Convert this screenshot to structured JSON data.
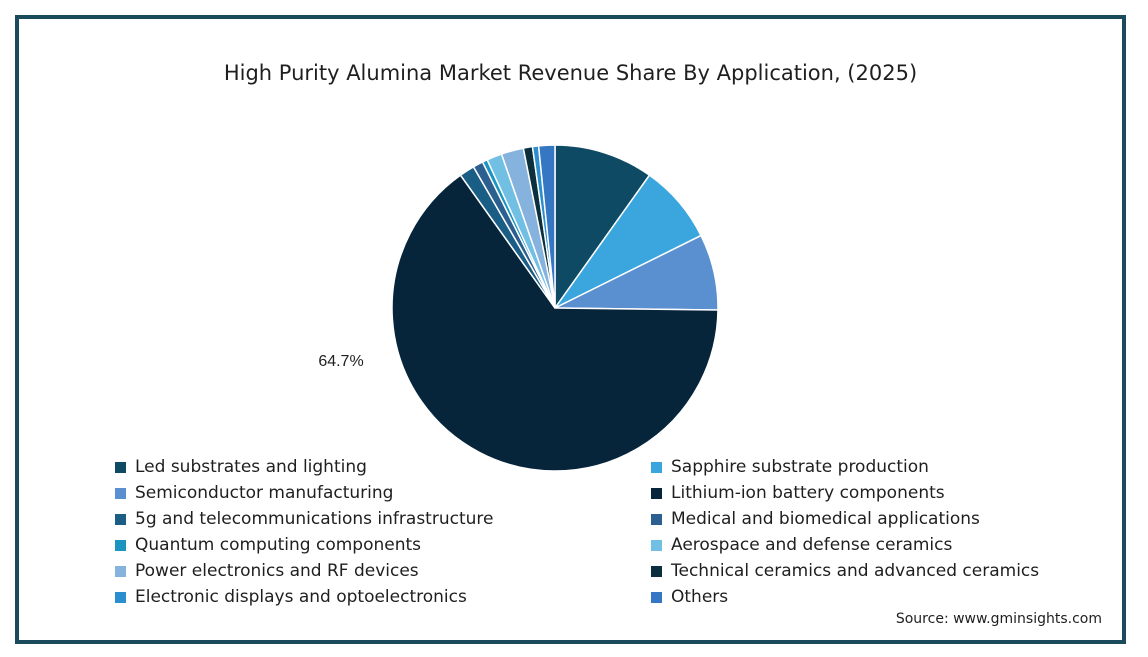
{
  "chart_data": {
    "type": "pie",
    "title": "High Purity Alumina Market Revenue Share By Application, (2025)",
    "slices": [
      {
        "label": "Led substrates and lighting",
        "value": 9.8,
        "color": "#0e4a63"
      },
      {
        "label": "Sapphire substrate production",
        "value": 7.8,
        "color": "#3aa6dd"
      },
      {
        "label": "Semiconductor manufacturing",
        "value": 7.5,
        "color": "#5a8fd0"
      },
      {
        "label": "Lithium-ion battery components",
        "value": 64.7,
        "color": "#07253a"
      },
      {
        "label": "5g and telecommunications infrastructure",
        "value": 1.5,
        "color": "#1a5e86"
      },
      {
        "label": "Medical and biomedical applications",
        "value": 1.0,
        "color": "#2b5f8f"
      },
      {
        "label": "Quantum computing components",
        "value": 0.5,
        "color": "#1b95c0"
      },
      {
        "label": "Aerospace and defense ceramics",
        "value": 1.5,
        "color": "#71c0e4"
      },
      {
        "label": "Power electronics and RF devices",
        "value": 2.2,
        "color": "#86b2de"
      },
      {
        "label": "Technical ceramics and advanced ceramics",
        "value": 0.9,
        "color": "#0b2f3c"
      },
      {
        "label": "Electronic displays and optoelectronics",
        "value": 0.6,
        "color": "#2a8ecf"
      },
      {
        "label": "Others",
        "value": 1.6,
        "color": "#3577c3"
      }
    ],
    "data_labels": [
      {
        "slice": "Lithium-ion battery components",
        "text": "64.7%"
      }
    ],
    "legend_position": "bottom"
  },
  "source": "Source: www.gminsights.com"
}
